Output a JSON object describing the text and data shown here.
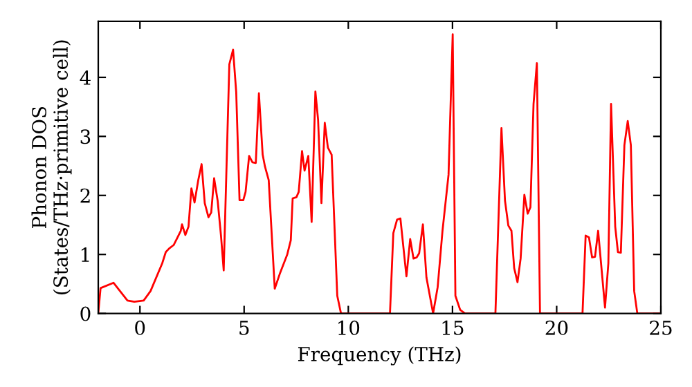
{
  "chart_data": {
    "type": "line",
    "xlabel": "Frequency (THz)",
    "ylabel": "Phonon DOS\n(States/THz·primitive cell)",
    "xlim": [
      -2,
      25
    ],
    "ylim": [
      0,
      4.95
    ],
    "xticks": [
      0,
      5,
      10,
      15,
      20,
      25
    ],
    "yticks": [
      0,
      1,
      2,
      3,
      4
    ],
    "grid": false,
    "marker": "none",
    "line_style": "solid",
    "series": [
      {
        "color": "#ff0000",
        "x": [
          -2.0,
          -1.89,
          -1.27,
          -0.6,
          -0.27,
          0.18,
          0.51,
          1.07,
          1.24,
          1.4,
          1.62,
          1.96,
          2.02,
          2.18,
          2.33,
          2.47,
          2.62,
          2.8,
          2.96,
          3.11,
          3.29,
          3.42,
          3.56,
          3.73,
          3.89,
          4.02,
          4.29,
          4.47,
          4.62,
          4.78,
          4.96,
          5.07,
          5.24,
          5.4,
          5.56,
          5.71,
          5.89,
          6.0,
          6.18,
          6.47,
          6.73,
          7.07,
          7.24,
          7.33,
          7.51,
          7.62,
          7.78,
          7.9,
          8.08,
          8.24,
          8.42,
          8.55,
          8.71,
          8.87,
          9.02,
          9.2,
          9.47,
          9.65,
          12.0,
          12.16,
          12.34,
          12.5,
          12.79,
          12.97,
          13.13,
          13.28,
          13.4,
          13.58,
          13.75,
          14.07,
          14.29,
          14.52,
          14.81,
          15.01,
          15.14,
          15.37,
          15.6,
          17.06,
          17.35,
          17.52,
          17.68,
          17.83,
          17.96,
          18.12,
          18.27,
          18.45,
          18.61,
          18.74,
          18.89,
          19.05,
          19.2,
          21.24,
          21.39,
          21.55,
          21.7,
          21.84,
          21.99,
          22.32,
          22.48,
          22.61,
          22.81,
          22.94,
          23.08,
          23.25,
          23.41,
          23.56,
          23.72,
          23.87,
          25.0
        ],
        "values": [
          0,
          0.43,
          0.52,
          0.22,
          0.2,
          0.22,
          0.38,
          0.85,
          1.04,
          1.1,
          1.16,
          1.4,
          1.51,
          1.33,
          1.47,
          2.12,
          1.88,
          2.26,
          2.53,
          1.87,
          1.63,
          1.71,
          2.29,
          1.91,
          1.32,
          0.73,
          4.22,
          4.47,
          3.75,
          1.92,
          1.92,
          2.06,
          2.67,
          2.56,
          2.55,
          3.73,
          2.69,
          2.49,
          2.26,
          0.42,
          0.69,
          1.0,
          1.24,
          1.95,
          1.97,
          2.06,
          2.75,
          2.42,
          2.67,
          1.55,
          3.76,
          3.28,
          1.87,
          3.23,
          2.81,
          2.69,
          0.3,
          0,
          0,
          1.36,
          1.59,
          1.61,
          0.63,
          1.26,
          0.93,
          0.95,
          1.02,
          1.51,
          0.61,
          0,
          0.45,
          1.4,
          2.35,
          4.73,
          0.3,
          0.06,
          0,
          0,
          3.14,
          1.91,
          1.49,
          1.4,
          0.77,
          0.53,
          0.93,
          2.01,
          1.69,
          1.8,
          3.55,
          4.24,
          0,
          0,
          1.32,
          1.29,
          0.95,
          0.96,
          1.4,
          0.1,
          0.85,
          3.55,
          1.47,
          1.04,
          1.03,
          2.85,
          3.26,
          2.85,
          0.38,
          0,
          0
        ]
      }
    ]
  }
}
